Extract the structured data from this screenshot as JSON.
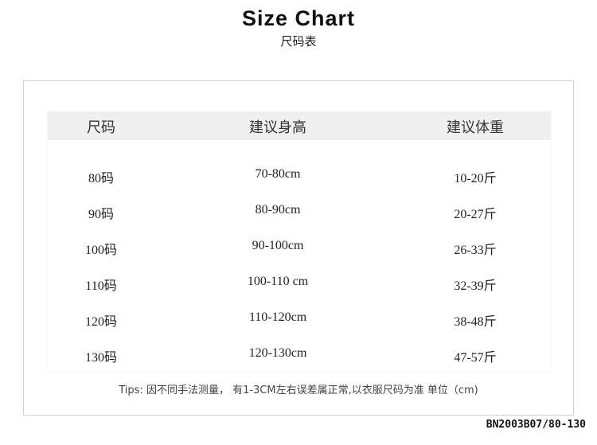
{
  "title": "Size Chart",
  "subtitle": "尺码表",
  "table": {
    "headers": [
      "尺码",
      "建议身高",
      "建议体重"
    ],
    "rows": [
      [
        "80码",
        "70-80cm",
        "10-20斤"
      ],
      [
        "90码",
        "80-90cm",
        "20-27斤"
      ],
      [
        "100码",
        "90-100cm",
        "26-33斤"
      ],
      [
        "110码",
        "100-110 cm",
        "32-39斤"
      ],
      [
        "120码",
        "110-120cm",
        "38-48斤"
      ],
      [
        "130码",
        "120-130cm",
        "47-57斤"
      ]
    ]
  },
  "tips": "Tips: 因不同手法测量，  有1-3CM左右误差属正常,以衣服尺码为准 单位（cm)",
  "product_code": "BN2003B07/80-130"
}
